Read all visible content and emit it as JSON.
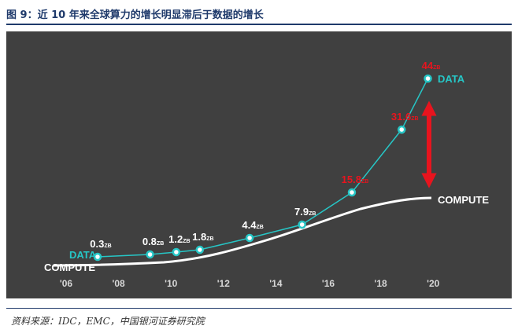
{
  "title": "图 9：近 10 年来全球算力的增长明显滞后于数据的增长",
  "source": "资料来源：IDC，EMC，中国银河证券研究院",
  "colors": {
    "background": "#404040",
    "data": "#26c6c6",
    "compute": "#ffffff",
    "label_red": "#e8141e",
    "label_white": "#ffffff",
    "tick": "#d8d8d8",
    "arrow": "#e8141e"
  },
  "chart_data": {
    "type": "line",
    "unit": "ZB",
    "x_ticks": [
      "'06",
      "'08",
      "'10",
      "'12",
      "'14",
      "'16",
      "'18",
      "'20"
    ],
    "xlim": [
      2006,
      2020
    ],
    "series": [
      {
        "name": "DATA",
        "points": [
          {
            "x": 2007.2,
            "y": 0.3,
            "label": "0.3",
            "red": false
          },
          {
            "x": 2009.2,
            "y": 0.8,
            "label": "0.8",
            "red": false
          },
          {
            "x": 2010.2,
            "y": 1.2,
            "label": "1.2",
            "red": false
          },
          {
            "x": 2011.1,
            "y": 1.8,
            "label": "1.8",
            "red": false
          },
          {
            "x": 2013.0,
            "y": 4.4,
            "label": "4.4",
            "red": false
          },
          {
            "x": 2015.0,
            "y": 7.9,
            "label": "7.9",
            "red": false
          },
          {
            "x": 2016.9,
            "y": 15.8,
            "label": "15.8",
            "red": true
          },
          {
            "x": 2018.8,
            "y": 31.6,
            "label": "31.6",
            "red": true
          },
          {
            "x": 2019.8,
            "y": 44,
            "label": "44",
            "red": true
          }
        ]
      },
      {
        "name": "COMPUTE"
      }
    ],
    "annotation": "gap arrow between DATA and COMPUTE in 2020"
  }
}
